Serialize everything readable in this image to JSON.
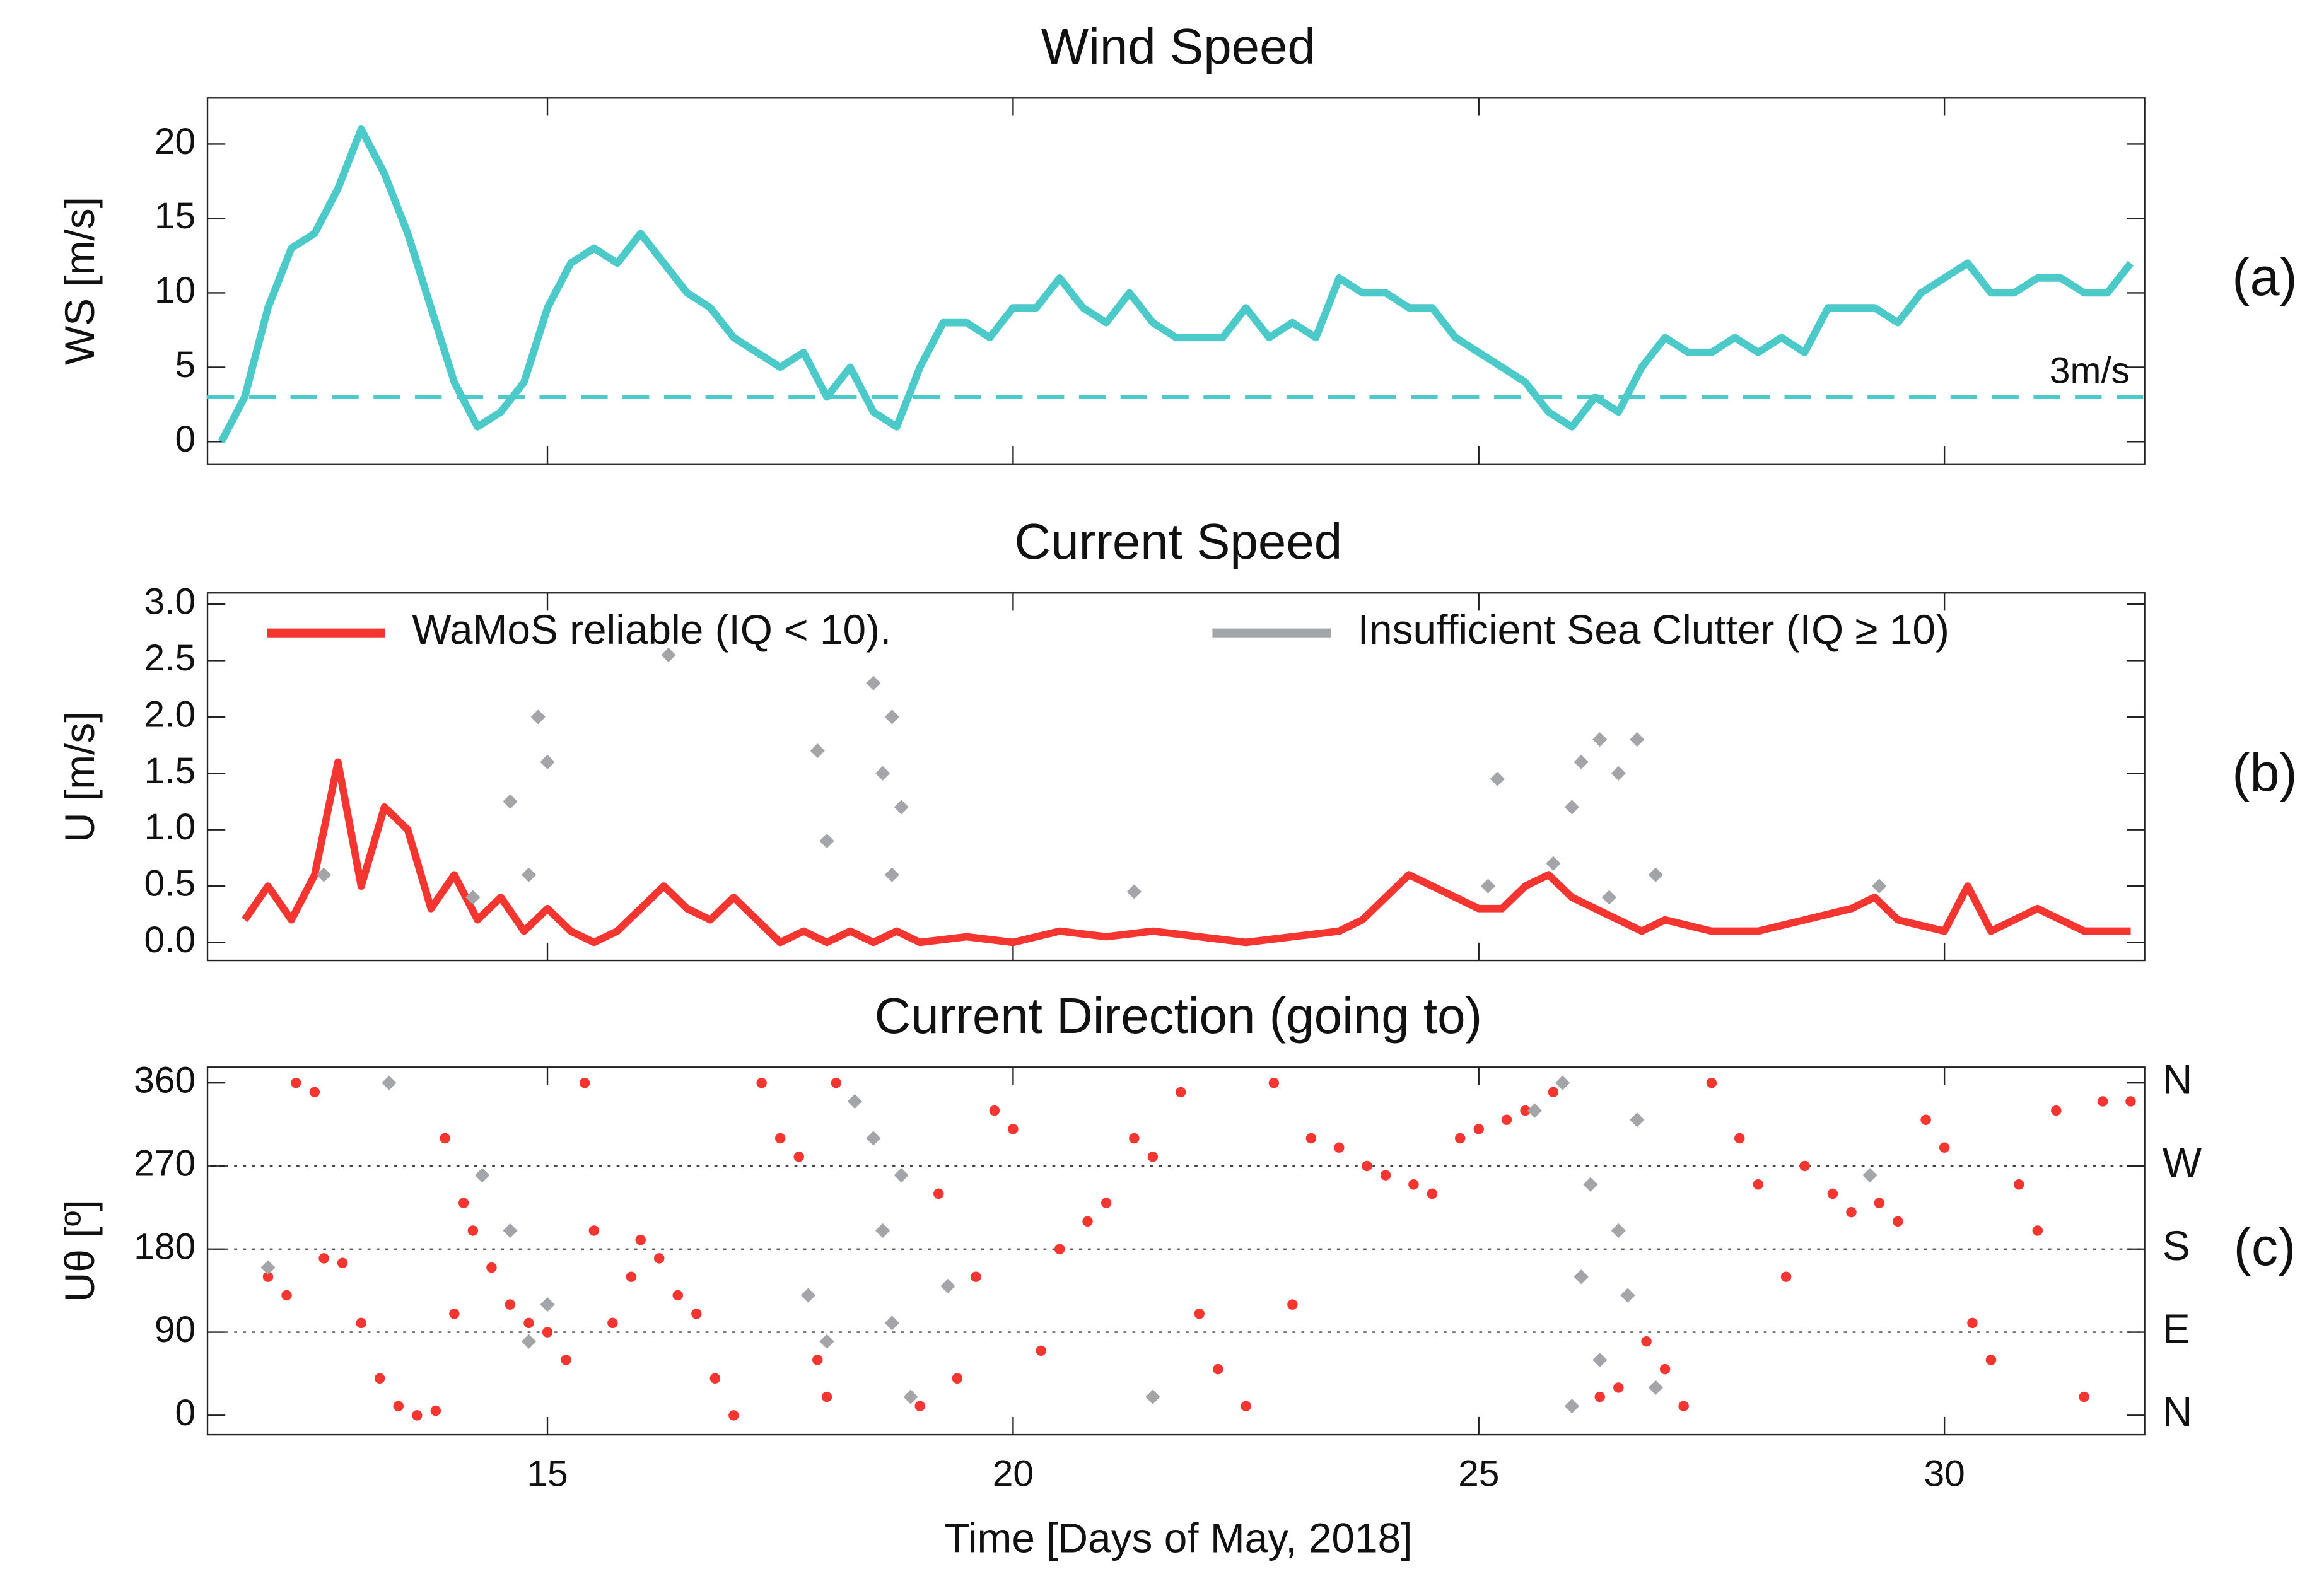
{
  "chart_data": [
    {
      "type": "line",
      "title": "Wind Speed",
      "ylabel": "WS [m/s]",
      "panel_label": "(a)",
      "color": "#4cc9c9",
      "mode": "line",
      "xlim": [
        11.35,
        32.15
      ],
      "xticks": [
        15,
        20,
        25,
        30
      ],
      "ylim": [
        -1.5,
        23.1
      ],
      "yticks": [
        0,
        5,
        10,
        15,
        20
      ],
      "threshold": {
        "value": 3,
        "label": "3m/s"
      },
      "x": [
        11.5,
        11.75,
        12,
        12.25,
        12.5,
        12.75,
        13,
        13.25,
        13.5,
        13.75,
        14,
        14.25,
        14.5,
        14.75,
        15,
        15.25,
        15.5,
        15.75,
        16,
        16.25,
        16.5,
        16.75,
        17,
        17.25,
        17.5,
        17.75,
        18,
        18.25,
        18.5,
        18.75,
        19,
        19.25,
        19.5,
        19.75,
        20,
        20.25,
        20.5,
        20.75,
        21,
        21.25,
        21.5,
        21.75,
        22,
        22.25,
        22.5,
        22.75,
        23,
        23.25,
        23.5,
        23.75,
        24,
        24.25,
        24.5,
        24.75,
        25,
        25.25,
        25.5,
        25.75,
        26,
        26.25,
        26.5,
        26.75,
        27,
        27.25,
        27.5,
        27.75,
        28,
        28.25,
        28.5,
        28.75,
        29,
        29.25,
        29.5,
        29.75,
        30,
        30.25,
        30.5,
        30.75,
        31,
        31.25,
        31.5,
        31.75,
        32
      ],
      "values": [
        0,
        3,
        9,
        13,
        14,
        17,
        21,
        18,
        14,
        9,
        4,
        1,
        2,
        4,
        9,
        12,
        13,
        12,
        14,
        12,
        10,
        9,
        7,
        6,
        5,
        6,
        3,
        5,
        2,
        1,
        5,
        8,
        8,
        7,
        9,
        9,
        11,
        9,
        8,
        10,
        8,
        7,
        7,
        7,
        9,
        7,
        8,
        7,
        11,
        10,
        10,
        9,
        9,
        7,
        6,
        5,
        4,
        2,
        1,
        3,
        2,
        5,
        7,
        6,
        6,
        7,
        6,
        7,
        6,
        9,
        9,
        9,
        8,
        10,
        11,
        12,
        10,
        10,
        11,
        11,
        10,
        10,
        12
      ]
    },
    {
      "type": "line",
      "title": "Current Speed",
      "ylabel": "U [m/s]",
      "panel_label": "(b)",
      "legend": "top",
      "xlim": [
        11.35,
        32.15
      ],
      "xticks": [
        15,
        20,
        25,
        30
      ],
      "ylim": [
        -0.16,
        3.1
      ],
      "yticks": [
        {
          "value": 0,
          "label": "0.0"
        },
        0.5,
        {
          "value": 1,
          "label": "1.0"
        },
        1.5,
        {
          "value": 2,
          "label": "2.0"
        },
        2.5,
        {
          "value": 3,
          "label": "3.0"
        }
      ],
      "series": [
        {
          "name": "WaMoS reliable (IQ < 10).",
          "color": "#f53530",
          "mode": "line",
          "x": [
            11.75,
            12,
            12.25,
            12.5,
            12.75,
            13,
            13.25,
            13.5,
            13.75,
            14,
            14.25,
            14.5,
            14.75,
            15,
            15.25,
            15.5,
            15.75,
            16,
            16.25,
            16.5,
            16.75,
            17,
            17.25,
            17.5,
            17.75,
            18,
            18.25,
            18.5,
            18.75,
            19,
            19.5,
            20,
            20.5,
            21,
            21.5,
            22,
            22.5,
            23,
            23.5,
            23.75,
            24,
            24.25,
            24.5,
            24.75,
            25,
            25.25,
            25.5,
            25.75,
            26,
            26.25,
            26.5,
            26.75,
            27,
            27.5,
            28,
            28.5,
            29,
            29.25,
            29.5,
            30,
            30.25,
            30.5,
            31,
            31.5,
            32
          ],
          "values": [
            0.2,
            0.5,
            0.2,
            0.6,
            1.6,
            0.5,
            1.2,
            1.0,
            0.3,
            0.6,
            0.2,
            0.4,
            0.1,
            0.3,
            0.1,
            0.0,
            0.1,
            0.3,
            0.5,
            0.3,
            0.2,
            0.4,
            0.2,
            0.0,
            0.1,
            0.0,
            0.1,
            0.0,
            0.1,
            0.0,
            0.05,
            0.0,
            0.1,
            0.05,
            0.1,
            0.05,
            0.0,
            0.05,
            0.1,
            0.2,
            0.4,
            0.6,
            0.5,
            0.4,
            0.3,
            0.3,
            0.5,
            0.6,
            0.4,
            0.3,
            0.2,
            0.1,
            0.2,
            0.1,
            0.1,
            0.2,
            0.3,
            0.4,
            0.2,
            0.1,
            0.5,
            0.1,
            0.3,
            0.1,
            0.1
          ]
        },
        {
          "name": "Insufficient Sea Clutter (IQ ≥ 10)",
          "color": "#a3a5a8",
          "mode": "markers",
          "x": [
            12.6,
            14.2,
            14.6,
            14.9,
            15.0,
            14.8,
            16.3,
            18.0,
            17.9,
            18.5,
            18.6,
            18.7,
            18.8,
            18.7,
            21.3,
            25.2,
            25.1,
            25.8,
            26.0,
            26.1,
            26.3,
            26.4,
            26.5,
            26.7,
            26.9,
            29.3
          ],
          "values": [
            0.6,
            0.4,
            1.25,
            2.0,
            1.6,
            0.6,
            2.55,
            0.9,
            1.7,
            2.3,
            1.5,
            2.0,
            1.2,
            0.6,
            0.45,
            1.45,
            0.5,
            0.7,
            1.2,
            1.6,
            1.8,
            0.4,
            1.5,
            1.8,
            0.6,
            0.5
          ]
        }
      ]
    },
    {
      "type": "line",
      "title": "Current Direction (going to)",
      "ylabel": "Uθ [º]",
      "xlabel": "Time [Days of May, 2018]",
      "panel_label": "(c)",
      "grid": true,
      "xlim": [
        11.35,
        32.15
      ],
      "xticks": [
        15,
        20,
        25,
        30
      ],
      "ylim": [
        -21,
        377
      ],
      "yticks": [
        0,
        90,
        180,
        270,
        360
      ],
      "y2lim": [
        -21,
        377
      ],
      "y2ticks": [
        {
          "value": 360,
          "label": "N"
        },
        {
          "value": 270,
          "label": "W"
        },
        {
          "value": 180,
          "label": "S"
        },
        {
          "value": 90,
          "label": "E"
        },
        {
          "value": 0,
          "label": "N"
        }
      ],
      "series": [
        {
          "name": "WaMoS reliable (IQ < 10).",
          "color": "#f53530",
          "mode": "markers",
          "x": [
            12.0,
            12.2,
            12.3,
            12.5,
            12.6,
            12.8,
            13.0,
            13.2,
            13.4,
            13.6,
            13.8,
            14.0,
            13.9,
            14.1,
            14.2,
            14.4,
            14.6,
            14.8,
            15.0,
            15.2,
            15.4,
            15.5,
            15.7,
            15.9,
            16.0,
            16.2,
            16.4,
            16.6,
            16.8,
            17.0,
            17.3,
            17.5,
            17.7,
            17.9,
            18.0,
            18.1,
            18.3,
            19.0,
            19.2,
            19.4,
            19.6,
            19.8,
            20.0,
            20.3,
            20.5,
            20.8,
            21.0,
            21.3,
            21.5,
            21.8,
            22.0,
            22.2,
            22.5,
            22.8,
            23.0,
            23.2,
            23.5,
            23.8,
            24.0,
            24.3,
            24.5,
            24.8,
            25.0,
            25.3,
            25.5,
            25.8,
            26.3,
            26.5,
            26.8,
            27.0,
            27.2,
            27.5,
            27.8,
            28.0,
            28.3,
            28.5,
            28.8,
            29.0,
            29.3,
            29.5,
            29.8,
            30.0,
            30.3,
            30.5,
            30.8,
            31.0,
            31.2,
            31.5,
            31.7,
            32.0
          ],
          "values": [
            150,
            130,
            360,
            350,
            170,
            165,
            100,
            40,
            10,
            0,
            5,
            110,
            300,
            230,
            200,
            160,
            120,
            100,
            90,
            60,
            360,
            200,
            100,
            150,
            190,
            170,
            130,
            110,
            40,
            0,
            360,
            300,
            280,
            60,
            20,
            360,
            340,
            10,
            240,
            40,
            150,
            330,
            310,
            70,
            180,
            210,
            230,
            300,
            280,
            350,
            110,
            50,
            10,
            360,
            120,
            300,
            290,
            270,
            260,
            250,
            240,
            300,
            310,
            320,
            330,
            350,
            20,
            30,
            80,
            50,
            10,
            360,
            300,
            250,
            150,
            270,
            240,
            220,
            230,
            210,
            320,
            290,
            100,
            60,
            250,
            200,
            330,
            20,
            340,
            340
          ]
        },
        {
          "name": "Insufficient Sea Clutter (IQ ≥ 10)",
          "color": "#a3a5a8",
          "mode": "markers",
          "x": [
            12.0,
            13.3,
            14.3,
            14.6,
            14.8,
            15.0,
            17.8,
            18.0,
            18.3,
            18.5,
            18.6,
            18.7,
            18.8,
            18.9,
            19.3,
            21.5,
            25.6,
            25.9,
            26.0,
            26.1,
            26.2,
            26.3,
            26.5,
            26.6,
            26.7,
            26.9,
            29.2
          ],
          "values": [
            160,
            360,
            260,
            200,
            80,
            120,
            130,
            80,
            340,
            300,
            200,
            100,
            260,
            20,
            140,
            20,
            330,
            360,
            10,
            150,
            250,
            60,
            200,
            130,
            320,
            30,
            260
          ]
        }
      ]
    }
  ]
}
